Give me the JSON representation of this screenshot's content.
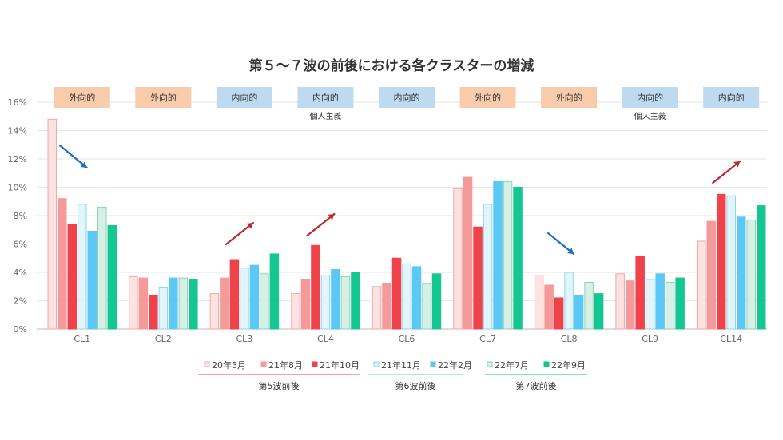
{
  "chart_data": {
    "type": "bar",
    "title": "第５～７波の前後における各クラスターの増減",
    "ylim": [
      0,
      16
    ],
    "y_tick_labels": [
      "0%",
      "2%",
      "4%",
      "6%",
      "8%",
      "10%",
      "12%",
      "14%",
      "16%"
    ],
    "categories": [
      "CL1",
      "CL2",
      "CL3",
      "CL4",
      "CL6",
      "CL7",
      "CL8",
      "CL9",
      "CL14"
    ],
    "category_tags": [
      "外向的",
      "外向的",
      "内向的",
      "内向的",
      "内向的",
      "外向的",
      "外向的",
      "内向的",
      "内向的"
    ],
    "category_subtags": [
      "",
      "",
      "",
      "個人主義",
      "",
      "",
      "",
      "個人主義",
      ""
    ],
    "trend_arrows": [
      "down",
      "",
      "up",
      "up",
      "",
      "",
      "down",
      "",
      "up"
    ],
    "series": [
      {
        "name": "20年5月",
        "values": [
          14.8,
          3.7,
          2.5,
          2.5,
          3.0,
          9.9,
          3.8,
          3.9,
          6.2
        ],
        "color": "#fde2e2",
        "stroke": "#f4a6a6"
      },
      {
        "name": "21年8月",
        "values": [
          9.2,
          3.6,
          3.6,
          3.5,
          3.2,
          10.7,
          3.1,
          3.4,
          7.6
        ],
        "color": "#f49a9a",
        "stroke": "#f49a9a"
      },
      {
        "name": "21年10月",
        "values": [
          7.4,
          2.4,
          4.9,
          5.9,
          5.0,
          7.2,
          2.2,
          5.1,
          9.5
        ],
        "color": "#f0424a",
        "stroke": "#f0424a"
      },
      {
        "name": "21年11月",
        "values": [
          8.8,
          2.9,
          4.3,
          3.8,
          4.6,
          8.8,
          4.0,
          3.5,
          9.4
        ],
        "color": "#e3f5fc",
        "stroke": "#8fd4ef"
      },
      {
        "name": "22年2月",
        "values": [
          6.9,
          3.6,
          4.5,
          4.2,
          4.4,
          10.4,
          2.4,
          3.9,
          7.9
        ],
        "color": "#5bc8f5",
        "stroke": "#5bc8f5"
      },
      {
        "name": "22年7月",
        "values": [
          8.6,
          3.6,
          3.9,
          3.7,
          3.2,
          10.4,
          3.3,
          3.3,
          7.7
        ],
        "color": "#d6f0e6",
        "stroke": "#8ed2b6"
      },
      {
        "name": "22年9月",
        "values": [
          7.3,
          3.5,
          5.3,
          4.0,
          3.9,
          10.0,
          2.5,
          3.6,
          8.7
        ],
        "color": "#14c690",
        "stroke": "#14c690"
      }
    ],
    "legend_groups": [
      {
        "label": "第5波前後",
        "color": "#f46a6a"
      },
      {
        "label": "第6波前後",
        "color": "#7dd3f5"
      },
      {
        "label": "第7波前後",
        "color": "#3ccd9a"
      }
    ],
    "tag_colors": {
      "外向的": "#f8ccaa",
      "内向的": "#bedaf0"
    },
    "arrow_colors": {
      "up": "#c0282d",
      "down": "#1f6ec0"
    },
    "grid": true,
    "legend_position": "bottom"
  }
}
